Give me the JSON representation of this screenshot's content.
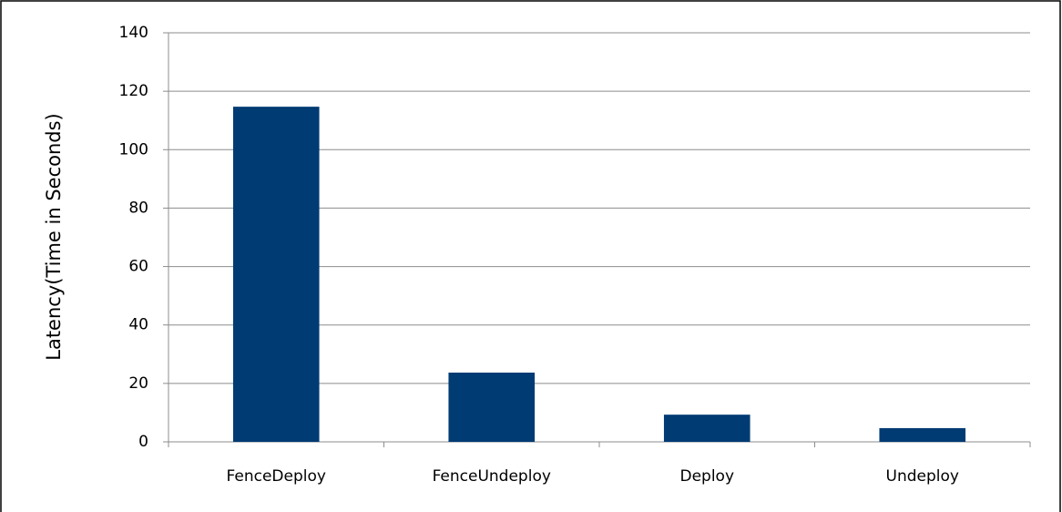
{
  "chart_data": {
    "type": "bar",
    "y_label": "Latency(Time in Seconds)",
    "categories": [
      "FenceDeploy",
      "FenceUndeploy",
      "Deploy",
      "Undeploy"
    ],
    "values": [
      114.7,
      23.7,
      9.3,
      4.7
    ],
    "color": "#003b73",
    "ylim": [
      0,
      140
    ],
    "yticks": [
      0,
      20,
      40,
      60,
      80,
      100,
      120,
      140
    ],
    "grid": true
  }
}
